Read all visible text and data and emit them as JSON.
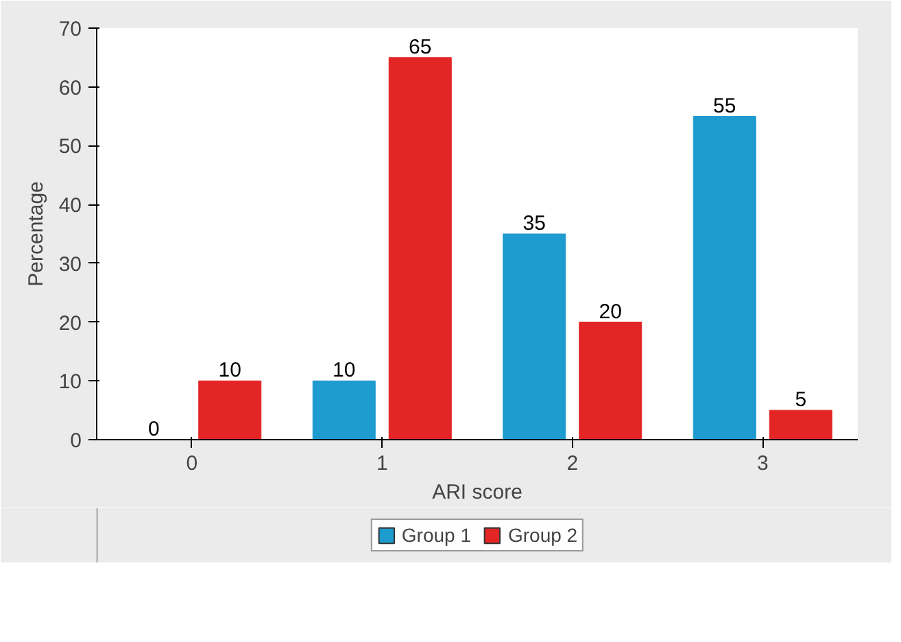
{
  "chart_data": {
    "type": "bar",
    "xlabel": "ARI score",
    "ylabel": "Percentage",
    "categories": [
      "0",
      "1",
      "2",
      "3"
    ],
    "series": [
      {
        "name": "Group 1",
        "color": "#1e9bcf",
        "values": [
          0,
          10,
          35,
          55
        ]
      },
      {
        "name": "Group 2",
        "color": "#e32526",
        "values": [
          10,
          65,
          20,
          5
        ]
      }
    ],
    "ylim": [
      0,
      70
    ],
    "yticks": [
      0,
      10,
      20,
      30,
      40,
      50,
      60,
      70
    ],
    "data_labels": true,
    "legend": "bottom",
    "grid": false
  }
}
